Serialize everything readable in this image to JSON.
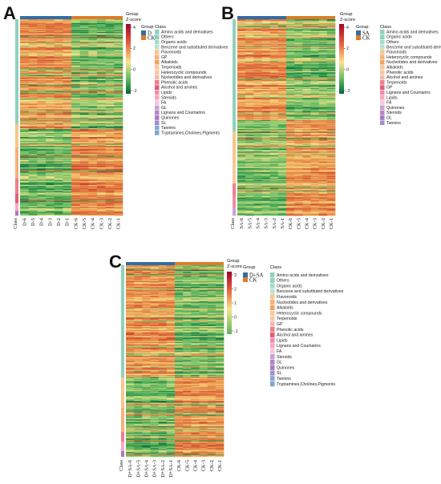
{
  "chart_data": [
    {
      "type": "heatmap",
      "panel_label": "A",
      "columns": [
        "D-6",
        "D-5",
        "D-4",
        "D-3",
        "D-2",
        "D-1",
        "CK-6",
        "CK-5",
        "CK-4",
        "CK-3",
        "CK-2",
        "CK-1"
      ],
      "row_annotation_label": "Class",
      "groups": [
        {
          "name": "D",
          "color": "#2f6fa8",
          "count": 6
        },
        {
          "name": "CK",
          "color": "#e07b2a",
          "count": 6
        }
      ],
      "legend": {
        "group_title": "Group",
        "zscore_title": "Z-score",
        "zscore_ticks": [
          4,
          2,
          0,
          -2
        ],
        "class_title": "Class",
        "classes": [
          "Amino acids and derivatives",
          "Others",
          "Organic acids",
          "Benzene and substituted derivatives",
          "Flavonoids",
          "GP",
          "Alkaloids",
          "Terpenoids",
          "Heterocyclic compounds",
          "Nucleotides and derivatives",
          "Phenolic acids",
          "Alcohol and amines",
          "Lipids",
          "Steroids",
          "FA",
          "GL",
          "Lignans and Coumarins",
          "Quinones",
          "SL",
          "Tannins",
          "Tryptamines,Cholines,Pigments"
        ]
      }
    },
    {
      "type": "heatmap",
      "panel_label": "B",
      "columns": [
        "SA-6",
        "SA-5",
        "SA-4",
        "SA-3",
        "SA-2",
        "SA-1",
        "CK-6",
        "CK-5",
        "CK-4",
        "CK-3",
        "CK-2",
        "CK-1"
      ],
      "row_annotation_label": "Class",
      "groups": [
        {
          "name": "SA",
          "color": "#2f6fa8",
          "count": 6
        },
        {
          "name": "CK",
          "color": "#e07b2a",
          "count": 6
        }
      ],
      "legend": {
        "group_title": "Group",
        "zscore_title": "Z-score",
        "zscore_ticks": [
          4,
          2,
          0,
          -2
        ],
        "class_title": "Class",
        "classes": [
          "Amino acids and derivatives",
          "Organic acids",
          "Others",
          "Benzene and substituted derivatives",
          "Flavonoids",
          "Heterocyclic compounds",
          "Nucleotides and derivatives",
          "Alkaloids",
          "Phenolic acids",
          "Alcohol and amines",
          "Terpenoids",
          "GP",
          "Lignans and Coumarins",
          "Lipids",
          "FA",
          "Quinones",
          "Steroids",
          "GL",
          "Tannins"
        ]
      }
    },
    {
      "type": "heatmap",
      "panel_label": "C",
      "columns": [
        "D+SA-6",
        "D+SA-5",
        "D+SA-4",
        "D+SA-3",
        "D+SA-2",
        "D+SA-1",
        "CK-6",
        "CK-5",
        "CK-4",
        "CK-3",
        "CK-2",
        "CK-1"
      ],
      "row_annotation_label": "Class",
      "groups": [
        {
          "name": "D+SA",
          "color": "#2f6fa8",
          "count": 6
        },
        {
          "name": "CK",
          "color": "#e07b2a",
          "count": 6
        }
      ],
      "legend": {
        "group_title": "Group",
        "zscore_title": "Z-score",
        "zscore_ticks": [
          3,
          2,
          1,
          0,
          -1
        ],
        "class_title": "Class",
        "classes": [
          "Amino acids and derivatives",
          "Others",
          "Organic acids",
          "Benzene and substituted derivatives",
          "Flavonoids",
          "Nucleotides and derivatives",
          "Alkaloids",
          "Heterocyclic compounds",
          "Terpenoids",
          "GP",
          "Phenolic acids",
          "Alcohol and amines",
          "Lipids",
          "Lignans and Coumarins",
          "FA",
          "Steroids",
          "GL",
          "Quinones",
          "SL",
          "Tannins",
          "Tryptamines,Cholines,Pigments"
        ]
      }
    }
  ],
  "colors": {
    "group1": "#2f6fa8",
    "group2": "#e07b2a",
    "high": "#b2182b",
    "mid": "#f7e38a",
    "low": "#1a9641"
  },
  "class_colors": [
    "#8fd1bf",
    "#8fd1bf",
    "#a6dbc9",
    "#b9e3cf",
    "#f6c78d",
    "#f4b27a",
    "#f2a35f",
    "#f7c8a0",
    "#f7c8a0",
    "#f4b8b0",
    "#ee7f8e",
    "#e35d72",
    "#f28ba8",
    "#f6a9c4",
    "#f8c6d8",
    "#c9a0d6",
    "#b784c7",
    "#a97bbf",
    "#9b8fd0",
    "#8aa6d6",
    "#7fa8c9"
  ]
}
